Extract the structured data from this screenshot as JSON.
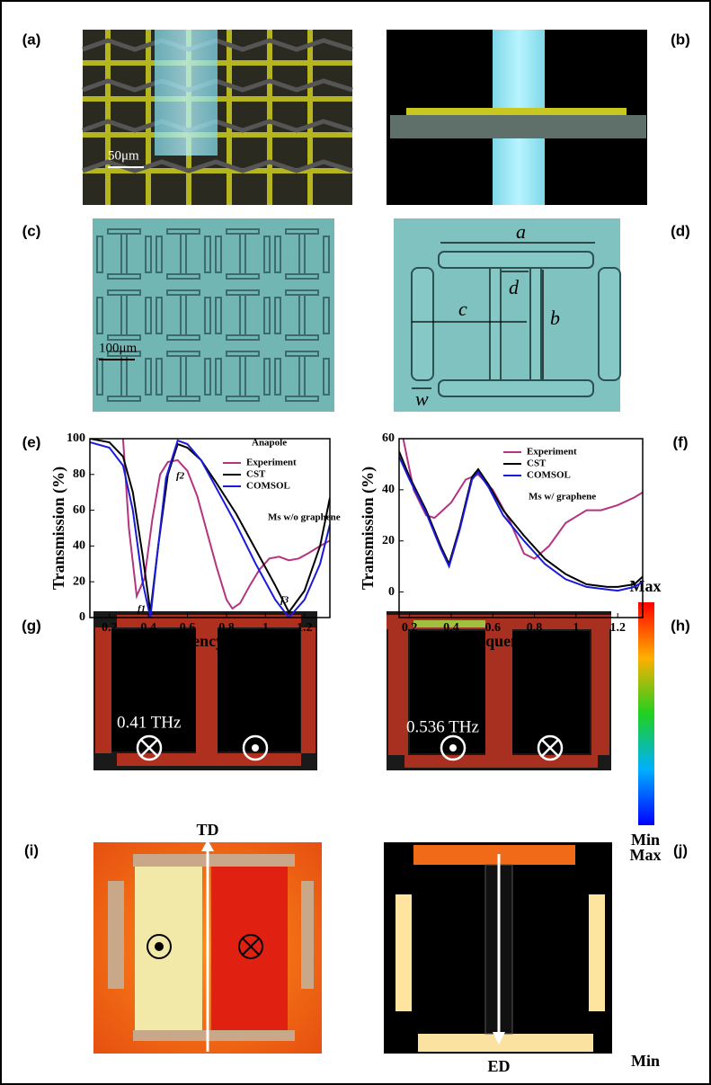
{
  "panels": {
    "labels": [
      "(a)",
      "(b)",
      "(c)",
      "(d)",
      "(e)",
      "(f)",
      "(g)",
      "(h)",
      "(i)",
      "(j)"
    ],
    "scale_a": "50μm",
    "scale_c": "100μm",
    "dims": [
      "a",
      "b",
      "c",
      "d",
      "w"
    ],
    "freq_g": "0.41 THz",
    "freq_h": "0.536 THz",
    "td": "TD",
    "ed": "ED",
    "colorbar_h": [
      "Max",
      "Min"
    ],
    "colorbar_j": [
      "Max",
      "Min"
    ]
  },
  "chart_data": [
    {
      "type": "line",
      "xlabel": "Frequency (THz)",
      "ylabel": "Transmission (%)",
      "xlim": [
        0.1,
        1.33
      ],
      "ylim": [
        0,
        100
      ],
      "xticks": [
        0.2,
        0.4,
        0.6,
        0.8,
        1.0,
        1.2
      ],
      "yticks": [
        0,
        20,
        40,
        60,
        80,
        100
      ],
      "annotations": [
        "Anapole",
        "f1",
        "f2",
        "f3",
        "Ms w/o graphene"
      ],
      "series": [
        {
          "name": "Experiment",
          "color": "#b5337f",
          "x": [
            0.27,
            0.3,
            0.34,
            0.38,
            0.42,
            0.46,
            0.5,
            0.55,
            0.6,
            0.65,
            0.7,
            0.75,
            0.8,
            0.83,
            0.87,
            0.92,
            0.97,
            1.02,
            1.07,
            1.12,
            1.17,
            1.22,
            1.28,
            1.33
          ],
          "values": [
            100,
            50,
            12,
            22,
            55,
            80,
            87,
            88,
            82,
            68,
            48,
            28,
            10,
            5,
            8,
            18,
            27,
            33,
            34,
            32,
            33,
            36,
            40,
            43
          ]
        },
        {
          "name": "CST",
          "color": "#000000",
          "x": [
            0.1,
            0.2,
            0.27,
            0.32,
            0.37,
            0.41,
            0.45,
            0.5,
            0.55,
            0.6,
            0.67,
            0.75,
            0.85,
            0.95,
            1.05,
            1.12,
            1.2,
            1.28,
            1.33
          ],
          "values": [
            100,
            98,
            90,
            70,
            35,
            3,
            40,
            80,
            97,
            95,
            88,
            75,
            58,
            38,
            18,
            3,
            15,
            40,
            67
          ]
        },
        {
          "name": "COMSOL",
          "color": "#1a1adb",
          "x": [
            0.1,
            0.2,
            0.27,
            0.32,
            0.37,
            0.41,
            0.44,
            0.49,
            0.55,
            0.6,
            0.67,
            0.75,
            0.85,
            0.95,
            1.05,
            1.12,
            1.2,
            1.28,
            1.33
          ],
          "values": [
            98,
            95,
            85,
            60,
            20,
            0,
            30,
            78,
            99,
            97,
            88,
            72,
            52,
            30,
            10,
            0,
            10,
            30,
            52
          ]
        }
      ]
    },
    {
      "type": "line",
      "xlabel": "Frequency (THz)",
      "ylabel": "Transmission (%)",
      "xlim": [
        0.15,
        1.32
      ],
      "ylim": [
        -10,
        60
      ],
      "xticks": [
        0.2,
        0.4,
        0.6,
        0.8,
        1.0,
        1.2
      ],
      "yticks": [
        0,
        20,
        40,
        60
      ],
      "annotations": [
        "Ms w/ graphene"
      ],
      "series": [
        {
          "name": "Experiment",
          "color": "#b5337f",
          "x": [
            0.17,
            0.22,
            0.28,
            0.32,
            0.4,
            0.47,
            0.53,
            0.6,
            0.68,
            0.75,
            0.8,
            0.87,
            0.95,
            1.05,
            1.12,
            1.2,
            1.28,
            1.32
          ],
          "values": [
            60,
            40,
            30,
            29,
            35,
            44,
            46,
            40,
            28,
            15,
            13,
            18,
            27,
            32,
            32,
            34,
            37,
            39
          ]
        },
        {
          "name": "CST",
          "color": "#000000",
          "x": [
            0.15,
            0.2,
            0.28,
            0.35,
            0.39,
            0.44,
            0.5,
            0.53,
            0.58,
            0.65,
            0.75,
            0.85,
            0.95,
            1.05,
            1.15,
            1.2,
            1.28,
            1.32
          ],
          "values": [
            55,
            45,
            32,
            18,
            11,
            25,
            45,
            48,
            42,
            32,
            22,
            13,
            7,
            3,
            2,
            2,
            3,
            6
          ]
        },
        {
          "name": "COMSOL",
          "color": "#1a1adb",
          "x": [
            0.15,
            0.2,
            0.28,
            0.35,
            0.39,
            0.44,
            0.5,
            0.53,
            0.58,
            0.65,
            0.75,
            0.85,
            0.95,
            1.05,
            1.15,
            1.2,
            1.28,
            1.32
          ],
          "values": [
            53,
            44,
            31,
            17,
            10,
            24,
            44,
            47,
            41,
            30,
            20,
            11,
            5,
            2,
            1,
            0.5,
            2,
            4
          ]
        }
      ]
    }
  ]
}
